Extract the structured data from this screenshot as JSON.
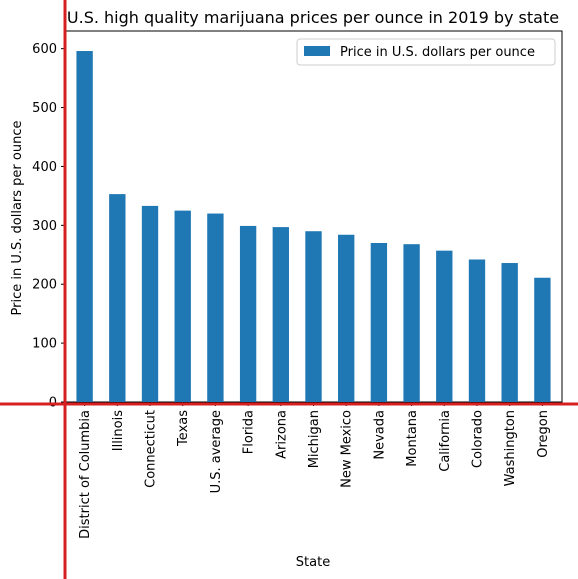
{
  "chart_data": {
    "type": "bar",
    "title": "U.S. high quality marijuana prices per ounce in 2019 by state",
    "xlabel": "State",
    "ylabel": "Price in U.S. dollars per ounce",
    "categories": [
      "District of Columbia",
      "Illinois",
      "Connecticut",
      "Texas",
      "U.S. average",
      "Florida",
      "Arizona",
      "Michigan",
      "New Mexico",
      "Nevada",
      "Montana",
      "California",
      "Colorado",
      "Washington",
      "Oregon"
    ],
    "series": [
      {
        "name": "Price in U.S. dollars per ounce",
        "values": [
          596,
          353,
          333,
          325,
          320,
          299,
          297,
          290,
          284,
          270,
          268,
          257,
          242,
          236,
          211
        ]
      }
    ],
    "ylim": [
      0,
      630
    ],
    "yticks": [
      0,
      100,
      200,
      300,
      400,
      500,
      600
    ],
    "legend_position": "top-right",
    "grid": false,
    "colors": {
      "bar": "#1f77b4",
      "crosshair": "#d62020"
    }
  }
}
